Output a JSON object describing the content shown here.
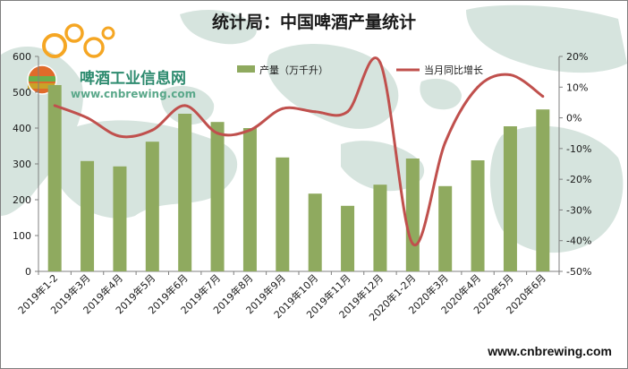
{
  "chart_data": {
    "type": "bar+line",
    "title": "统计局：中国啤酒产量统计",
    "categories": [
      "2019年1-2",
      "2019年3月",
      "2019年4月",
      "2019年5月",
      "2019年6月",
      "2019年7月",
      "2019年8月",
      "2019年9月",
      "2019年10月",
      "2019年11月",
      "2019年12月",
      "2020年1-2月",
      "2020年3月",
      "2020年4月",
      "2020年5月",
      "2020年6月"
    ],
    "series": [
      {
        "name": "产量（万千升）",
        "type": "bar",
        "axis": "left",
        "color": "#8faa5f",
        "values": [
          520,
          308,
          293,
          362,
          440,
          417,
          400,
          318,
          217,
          183,
          242,
          315,
          238,
          310,
          405,
          452
        ]
      },
      {
        "name": "当月同比增长",
        "type": "line",
        "axis": "right",
        "color": "#c0504d",
        "values": [
          4,
          0,
          -6,
          -4,
          4,
          -5,
          -4,
          3,
          2,
          2,
          18,
          -41,
          -8,
          10,
          14,
          7
        ]
      }
    ],
    "y_left": {
      "min": 0,
      "max": 600,
      "step": 100,
      "tick_labels": [
        "0",
        "100",
        "200",
        "300",
        "400",
        "500",
        "600"
      ]
    },
    "y_right": {
      "min": -50,
      "max": 20,
      "step": 10,
      "unit": "%",
      "tick_labels": [
        "-50%",
        "-40%",
        "-30%",
        "-20%",
        "-10%",
        "0%",
        "10%",
        "20%"
      ]
    },
    "legend": "top-right",
    "grid": false
  },
  "watermark": {
    "logo_text": "啤酒工业信息网",
    "logo_url": "www.cnbrewing.com"
  },
  "footer": {
    "url": "www.cnbrewing.com"
  },
  "colors": {
    "bar": "#8faa5f",
    "line": "#c0504d",
    "map": "#d6e4de"
  }
}
